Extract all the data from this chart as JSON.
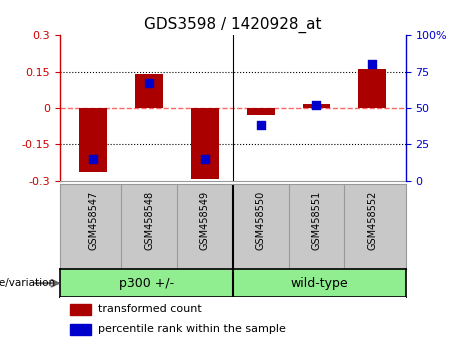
{
  "title": "GDS3598 / 1420928_at",
  "samples": [
    "GSM458547",
    "GSM458548",
    "GSM458549",
    "GSM458550",
    "GSM458551",
    "GSM458552"
  ],
  "group_labels": [
    "p300 +/-",
    "wild-type"
  ],
  "group_split": 3,
  "bar_values": [
    -0.265,
    0.14,
    -0.295,
    -0.03,
    0.018,
    0.16
  ],
  "dot_values_pct": [
    15,
    67,
    15,
    38,
    52,
    80
  ],
  "ylim_left": [
    -0.3,
    0.3
  ],
  "ylim_right": [
    0,
    100
  ],
  "yticks_left": [
    -0.3,
    -0.15,
    0,
    0.15,
    0.3
  ],
  "yticks_right": [
    0,
    25,
    50,
    75,
    100
  ],
  "bar_color": "#AA0000",
  "dot_color": "#0000CC",
  "zero_line_color": "#FF6666",
  "grid_color": "#000000",
  "bg_color": "#FFFFFF",
  "left_axis_color": "#CC0000",
  "right_axis_color": "#0000CC",
  "bar_width": 0.5,
  "sample_label_bg": "#C8C8C8",
  "group_bg": "#90EE90",
  "legend_items": [
    "transformed count",
    "percentile rank within the sample"
  ],
  "genotype_label": "genotype/variation"
}
